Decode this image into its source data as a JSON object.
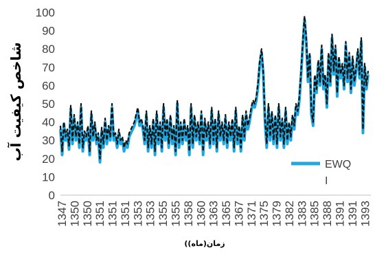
{
  "chart_data": {
    "type": "line",
    "title": "",
    "ylabel": "شاخص کیفیت آب",
    "xlabel": "زمان(ماه))",
    "ylim": [
      0,
      100
    ],
    "yticks": [
      "0",
      "10",
      "20",
      "30",
      "40",
      "50",
      "60",
      "70",
      "80",
      "90",
      "100"
    ],
    "xticks": [
      "1347",
      "1350",
      "1350",
      "1351",
      "1351",
      "1351",
      "1353",
      "1353",
      "1355",
      "1355",
      "1358",
      "1360",
      "1363",
      "1365",
      "1367",
      "1371",
      "1375",
      "1379",
      "1382",
      "1383",
      "1385",
      "1388",
      "1391",
      "1391",
      "1393"
    ],
    "legend": {
      "position": "right",
      "entries": [
        {
          "label": "EWQ",
          "label2": "I",
          "color": "#1fa7e0"
        }
      ]
    },
    "series_colors": {
      "ewqi": "#1fa7e0",
      "overlay": "#111111"
    },
    "series": [
      {
        "name": "EWQI",
        "x_index_range": [
          0,
          179
        ],
        "values": [
          36,
          22,
          39,
          30,
          34,
          25,
          47,
          28,
          42,
          30,
          38,
          26,
          48,
          24,
          33,
          30,
          36,
          22,
          44,
          30,
          38,
          28,
          32,
          18,
          35,
          26,
          40,
          28,
          36,
          30,
          48,
          30,
          32,
          26,
          34,
          28,
          30,
          24,
          28,
          26,
          32,
          34,
          36,
          38,
          42,
          46,
          38,
          40,
          36,
          28,
          44,
          24,
          36,
          26,
          40,
          22,
          44,
          28,
          38,
          24,
          48,
          30,
          40,
          26,
          42,
          28,
          36,
          22,
          50,
          26,
          38,
          28,
          40,
          30,
          36,
          22,
          48,
          26,
          42,
          30,
          38,
          28,
          44,
          22,
          40,
          30,
          38,
          26,
          46,
          28,
          40,
          24,
          44,
          30,
          38,
          28,
          42,
          26,
          38,
          30,
          40,
          24,
          46,
          28,
          36,
          24,
          42,
          30,
          44,
          36,
          40,
          46,
          50,
          48,
          52,
          60,
          72,
          78,
          66,
          40,
          26,
          48,
          30,
          44,
          28,
          42,
          26,
          48,
          30,
          40,
          26,
          46,
          28,
          38,
          30,
          42,
          36,
          48,
          44,
          52,
          66,
          82,
          96,
          84,
          62,
          76,
          44,
          38,
          64,
          56,
          72,
          60,
          80,
          58,
          64,
          48,
          76,
          60,
          86,
          66,
          80,
          54,
          74,
          64,
          70,
          58,
          82,
          62,
          76,
          56,
          74,
          60,
          68,
          78,
          64,
          84,
          34,
          70,
          58,
          66
        ]
      },
      {
        "name": "overlay",
        "values": [
          38,
          24,
          40,
          32,
          36,
          27,
          49,
          30,
          44,
          32,
          40,
          28,
          50,
          26,
          35,
          32,
          38,
          24,
          46,
          32,
          40,
          30,
          34,
          20,
          37,
          28,
          42,
          30,
          38,
          32,
          50,
          32,
          34,
          28,
          36,
          30,
          32,
          26,
          30,
          28,
          34,
          36,
          38,
          40,
          44,
          48,
          40,
          42,
          38,
          30,
          46,
          26,
          38,
          28,
          42,
          24,
          46,
          30,
          40,
          26,
          50,
          32,
          42,
          28,
          44,
          30,
          38,
          24,
          52,
          28,
          40,
          30,
          42,
          32,
          38,
          24,
          50,
          28,
          44,
          32,
          40,
          30,
          46,
          24,
          42,
          32,
          40,
          28,
          48,
          30,
          42,
          26,
          46,
          32,
          40,
          30,
          44,
          28,
          40,
          32,
          42,
          26,
          48,
          30,
          38,
          26,
          44,
          32,
          46,
          38,
          42,
          48,
          52,
          50,
          54,
          62,
          74,
          80,
          68,
          42,
          28,
          50,
          32,
          46,
          30,
          44,
          28,
          50,
          32,
          42,
          28,
          48,
          30,
          40,
          32,
          44,
          38,
          50,
          46,
          54,
          68,
          84,
          98,
          86,
          64,
          78,
          46,
          40,
          66,
          58,
          74,
          62,
          82,
          60,
          66,
          50,
          78,
          62,
          88,
          68,
          82,
          56,
          76,
          66,
          72,
          60,
          84,
          64,
          78,
          58,
          76,
          62,
          70,
          80,
          66,
          86,
          36,
          72,
          60,
          68
        ]
      }
    ]
  }
}
